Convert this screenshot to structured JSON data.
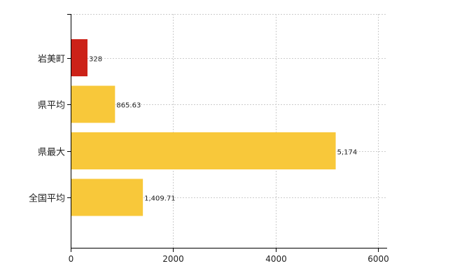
{
  "chart_data": {
    "type": "bar",
    "orientation": "horizontal",
    "categories": [
      "岩美町",
      "県平均",
      "県最大",
      "全国平均"
    ],
    "values": [
      328,
      865.63,
      5174,
      1409.71
    ],
    "data_labels": [
      "328",
      "865.63",
      "5,174",
      "1,409.71"
    ],
    "xlim": [
      0,
      6000
    ],
    "xticks": [
      0,
      2000,
      4000,
      6000
    ],
    "xtick_labels": [
      "0",
      "2000",
      "4000",
      "6000"
    ],
    "grid": "vertical, dashed",
    "legend": "none",
    "title": "",
    "xlabel": "",
    "ylabel": ""
  },
  "colors": {
    "highlight": "#cc2218",
    "bar": "#f8c83a",
    "grid": "#cccccc",
    "axis": "#000000"
  }
}
